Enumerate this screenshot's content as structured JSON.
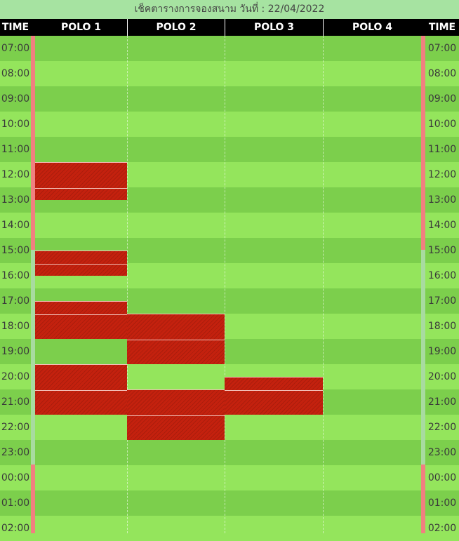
{
  "page": {
    "title": "เช็คตารางการจองสนาม วันที่ : 22/04/2022"
  },
  "header": {
    "time_left": "TIME",
    "courts": [
      "POLO 1",
      "POLO 2",
      "POLO 3",
      "POLO 4"
    ],
    "time_right": "TIME"
  },
  "times": [
    "07:00",
    "08:00",
    "09:00",
    "10:00",
    "11:00",
    "12:00",
    "13:00",
    "14:00",
    "15:00",
    "16:00",
    "17:00",
    "18:00",
    "19:00",
    "20:00",
    "21:00",
    "22:00",
    "23:00",
    "00:00",
    "01:00",
    "02:00"
  ],
  "bookings": [
    {
      "court": 0,
      "start_hour": 12.0,
      "end_hour": 13.5
    },
    {
      "court": 0,
      "start_hour": 15.5,
      "end_hour": 16.5
    },
    {
      "court": 0,
      "start_hour": 17.5,
      "end_hour": 19.0
    },
    {
      "court": 0,
      "start_hour": 20.0,
      "end_hour": 22.0
    },
    {
      "court": 1,
      "start_hour": 18.0,
      "end_hour": 20.0
    },
    {
      "court": 1,
      "start_hour": 21.0,
      "end_hour": 23.0
    },
    {
      "court": 2,
      "start_hour": 20.5,
      "end_hour": 22.0
    }
  ],
  "colors": {
    "row_dark": "#7ccf4c",
    "row_light": "#94e55c",
    "booked": "#c4210e",
    "status_busy": "#f08080",
    "status_free": "#a8dba0"
  }
}
